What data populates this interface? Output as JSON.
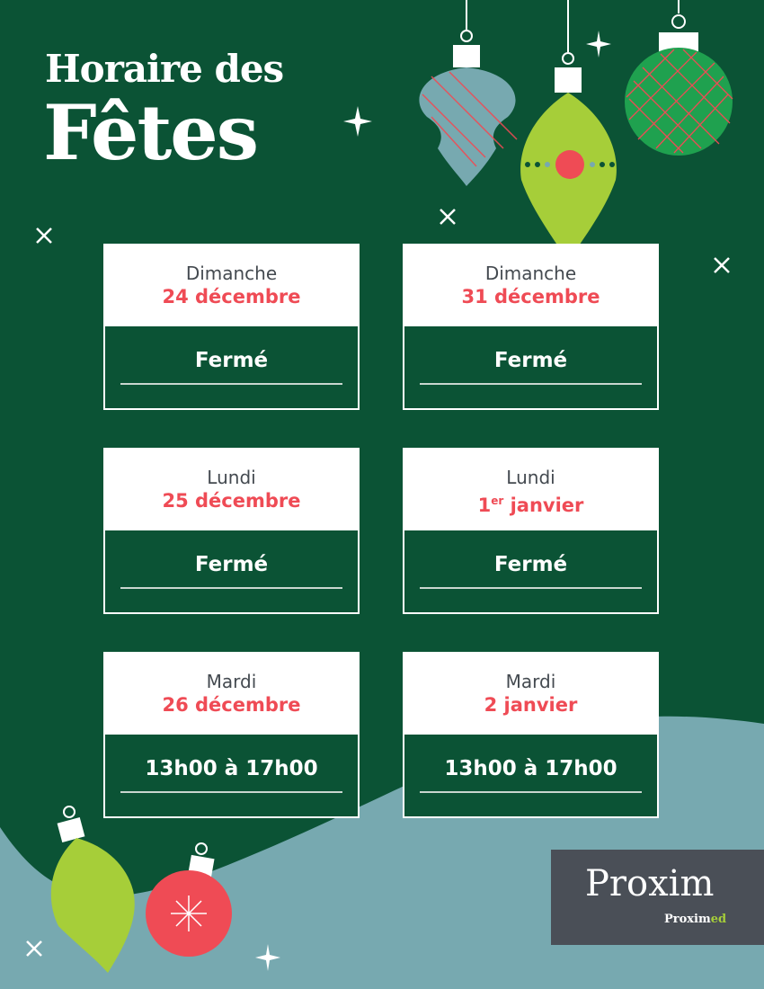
{
  "title": {
    "line1": "Horaire des",
    "line2": "Fêtes"
  },
  "colors": {
    "background": "#0b5335",
    "accent_red": "#ef4b55",
    "lime": "#a6ce39",
    "teal": "#77a9b0",
    "logo_bg": "#4a4f57"
  },
  "schedule": [
    {
      "day": "Dimanche",
      "date": "24 décembre",
      "hours": "Fermé"
    },
    {
      "day": "Dimanche",
      "date": "31 décembre",
      "hours": "Fermé"
    },
    {
      "day": "Lundi",
      "date": "25 décembre",
      "hours": "Fermé"
    },
    {
      "day": "Lundi",
      "date_num": "1",
      "date_sup": "er",
      "date_rest": " janvier",
      "hours": "Fermé"
    },
    {
      "day": "Mardi",
      "date": "26 décembre",
      "hours": "13h00 à 17h00"
    },
    {
      "day": "Mardi",
      "date": "2 janvier",
      "hours": "13h00 à 17h00"
    }
  ],
  "logo": {
    "brand": "Proxim",
    "sub_brand_a": "Proxim",
    "sub_brand_b": "ed"
  }
}
